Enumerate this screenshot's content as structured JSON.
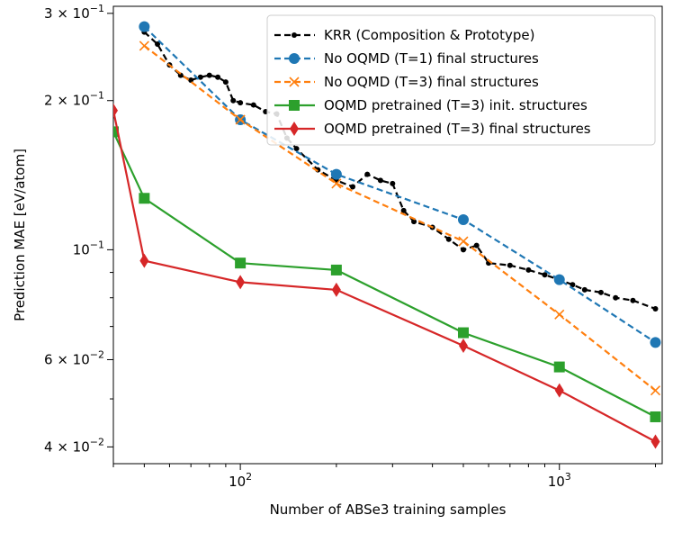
{
  "chart_data": {
    "type": "line",
    "title": "",
    "xlabel": "Number of ABSe3 training samples",
    "ylabel": "Prediction MAE [eV/atom]",
    "xscale": "log",
    "yscale": "log",
    "xlim": [
      40,
      2100
    ],
    "ylim": [
      0.037,
      0.31
    ],
    "grid": false,
    "legend_position": "top-right",
    "x_major_ticks": [
      {
        "value": 100,
        "base": "10",
        "exp": "2"
      },
      {
        "value": 1000,
        "base": "10",
        "exp": "3"
      }
    ],
    "y_tick_labels": [
      {
        "value": 0.3,
        "mant": "3 × 10",
        "exp": "−1"
      },
      {
        "value": 0.2,
        "mant": "2 × 10",
        "exp": "−1"
      },
      {
        "value": 0.1,
        "mant": "10",
        "exp": "−1"
      },
      {
        "value": 0.06,
        "mant": "6 × 10",
        "exp": "−2"
      },
      {
        "value": 0.04,
        "mant": "4 × 10",
        "exp": "−2"
      }
    ],
    "series": [
      {
        "name": "KRR (Composition & Prototype)",
        "color": "#000000",
        "dash": "dashed",
        "marker": "dot",
        "x": [
          50,
          55,
          60,
          65,
          70,
          75,
          80,
          85,
          90,
          95,
          100,
          110,
          120,
          130,
          140,
          150,
          175,
          200,
          225,
          250,
          275,
          300,
          325,
          350,
          400,
          450,
          500,
          550,
          600,
          700,
          800,
          900,
          1000,
          1100,
          1200,
          1350,
          1500,
          1700,
          2000
        ],
        "y": [
          0.275,
          0.26,
          0.236,
          0.225,
          0.22,
          0.223,
          0.225,
          0.223,
          0.218,
          0.2,
          0.198,
          0.196,
          0.19,
          0.188,
          0.168,
          0.16,
          0.145,
          0.138,
          0.134,
          0.142,
          0.138,
          0.136,
          0.12,
          0.114,
          0.111,
          0.105,
          0.1,
          0.102,
          0.094,
          0.093,
          0.091,
          0.089,
          0.087,
          0.085,
          0.083,
          0.082,
          0.08,
          0.079,
          0.076
        ]
      },
      {
        "name": "No OQMD (T=1) final structures",
        "color": "#1f77b4",
        "dash": "dashed",
        "marker": "circle",
        "x": [
          50,
          100,
          200,
          500,
          1000,
          2000
        ],
        "y": [
          0.282,
          0.183,
          0.142,
          0.115,
          0.087,
          0.065
        ]
      },
      {
        "name": "No OQMD (T=3) final structures",
        "color": "#ff7f0e",
        "dash": "dashed",
        "marker": "x",
        "x": [
          50,
          100,
          200,
          500,
          1000,
          2000
        ],
        "y": [
          0.258,
          0.183,
          0.136,
          0.104,
          0.074,
          0.052
        ]
      },
      {
        "name": "OQMD pretrained (T=3) init. structures",
        "color": "#2ca02c",
        "dash": "solid",
        "marker": "square",
        "x": [
          40,
          50,
          100,
          200,
          500,
          1000,
          2000
        ],
        "y": [
          0.173,
          0.127,
          0.094,
          0.091,
          0.068,
          0.058,
          0.046
        ]
      },
      {
        "name": "OQMD pretrained (T=3) final structures",
        "color": "#d62728",
        "dash": "solid",
        "marker": "diamond",
        "x": [
          40,
          50,
          100,
          200,
          500,
          1000,
          2000
        ],
        "y": [
          0.191,
          0.095,
          0.086,
          0.083,
          0.064,
          0.052,
          0.041
        ]
      }
    ]
  }
}
